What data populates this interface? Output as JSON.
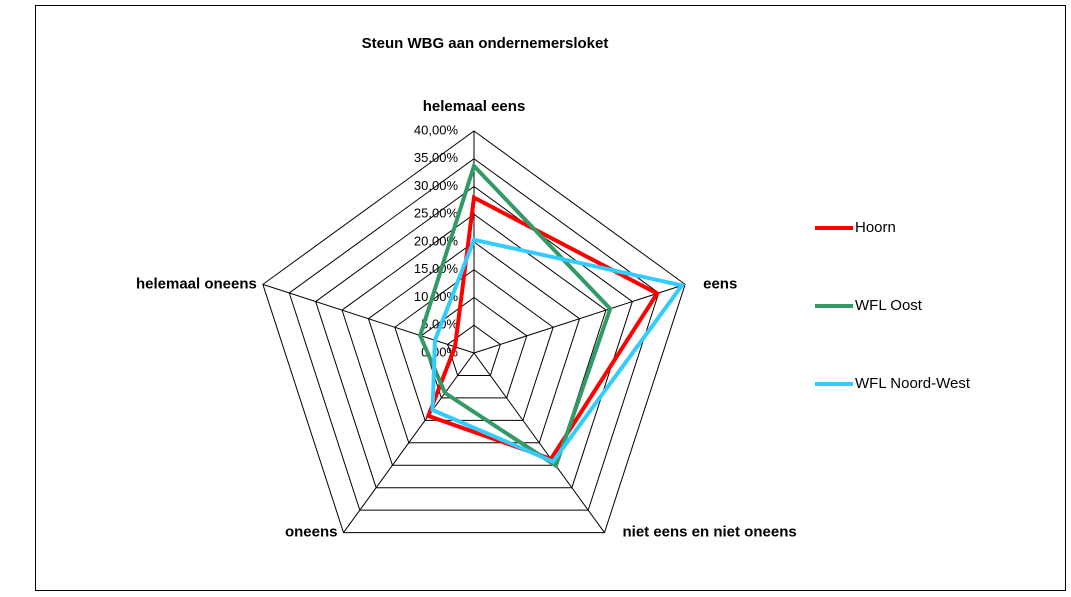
{
  "chart_data": {
    "type": "radar",
    "title": "Steun WBG aan ondernemersloket",
    "categories": [
      "helemaal eens",
      "eens",
      "niet eens en niet oneens",
      "oneens",
      "helemaal oneens"
    ],
    "series": [
      {
        "name": "Hoorn",
        "color": "#ff0000",
        "values": [
          28,
          34.7,
          23.6,
          14,
          3.6
        ]
      },
      {
        "name": "WFL Oost",
        "color": "#339966",
        "values": [
          33.7,
          25.8,
          25.1,
          8.9,
          10.2
        ]
      },
      {
        "name": "WFL Noord-West",
        "color": "#33ccff",
        "values": [
          20.4,
          39.4,
          24.2,
          12.7,
          7.4
        ]
      }
    ],
    "ylim": [
      0,
      40
    ],
    "yticks": [
      {
        "value": 0,
        "label": "0,00%"
      },
      {
        "value": 5,
        "label": "5,00%"
      },
      {
        "value": 10,
        "label": "10,00%"
      },
      {
        "value": 15,
        "label": "15,00%"
      },
      {
        "value": 20,
        "label": "20,00%"
      },
      {
        "value": 25,
        "label": "25,00%"
      },
      {
        "value": 30,
        "label": "30,00%"
      },
      {
        "value": 35,
        "label": "35,00%"
      },
      {
        "value": 40,
        "label": "40,00%"
      }
    ],
    "grid": true,
    "legend": "right"
  }
}
